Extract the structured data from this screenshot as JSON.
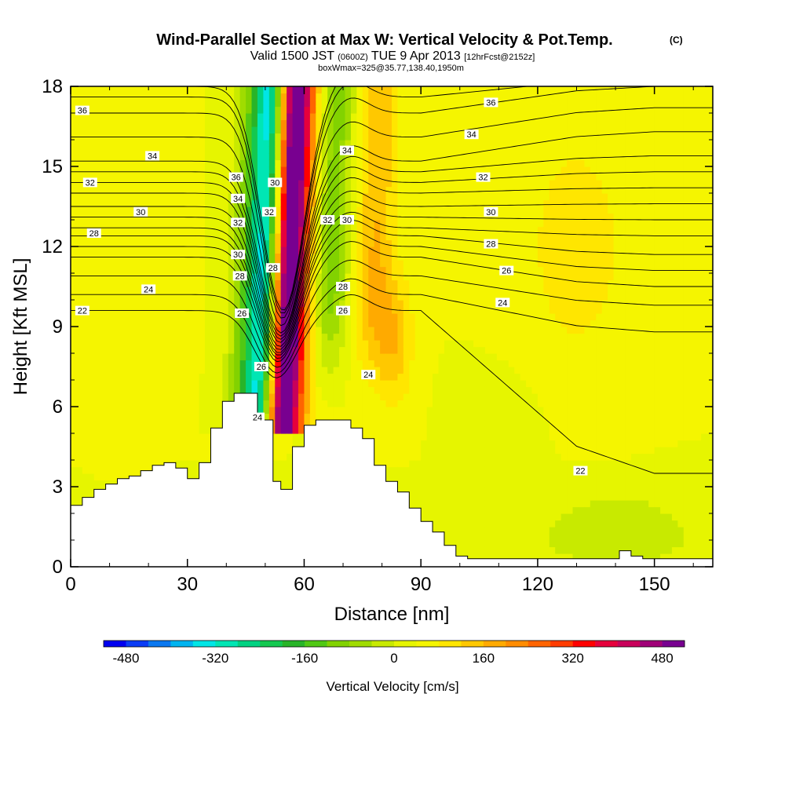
{
  "chart_data": {
    "type": "heatmap",
    "title": "Wind-Parallel Section at Max W: Vertical Velocity & Pot.Temp.",
    "title_badge": "(C)",
    "subtitle_main": "Valid 1500 JST",
    "subtitle_utc": "(0600Z)",
    "subtitle_date": "TUE 9 Apr 2013",
    "subtitle_fcst": "[12hrFcst@2152z]",
    "subtitle2": "boxWmax=325@35.77,138.40,1950m",
    "xlabel": "Distance [nm]",
    "ylabel": "Height [Kft MSL]",
    "xlim": [
      0,
      165
    ],
    "ylim": [
      0,
      18
    ],
    "x_ticks": [
      "0",
      "30",
      "60",
      "90",
      "120",
      "150"
    ],
    "y_ticks": [
      "0",
      "3",
      "6",
      "9",
      "12",
      "15",
      "18"
    ],
    "colorbar": {
      "label": "Vertical Velocity [cm/s]",
      "ticks": [
        "-480",
        "-320",
        "-160",
        "0",
        "160",
        "320",
        "480"
      ],
      "range": [
        -520,
        520
      ],
      "colors": [
        "#0000f0",
        "#0a3cf5",
        "#0a78f0",
        "#00b4f0",
        "#00e6e6",
        "#00e6b4",
        "#00d282",
        "#14c850",
        "#28b428",
        "#50c814",
        "#82d200",
        "#a0dc00",
        "#c8ea00",
        "#e6f500",
        "#f5f500",
        "#ffe600",
        "#ffc800",
        "#ffaa00",
        "#ff8c00",
        "#ff6400",
        "#ff3c00",
        "#ff0000",
        "#e6003c",
        "#c8005a",
        "#a00078",
        "#780090"
      ]
    },
    "velocity_field": {
      "x": [
        0,
        6,
        12,
        18,
        24,
        30,
        36,
        38,
        40,
        42,
        44,
        46,
        48,
        50,
        52,
        54,
        56,
        58,
        60,
        62,
        64,
        66,
        68,
        70,
        72,
        74,
        76,
        78,
        80,
        82,
        84,
        86,
        90,
        96,
        102,
        108,
        114,
        120,
        126,
        132,
        138,
        144,
        150,
        156,
        160,
        165
      ],
      "y": [
        0,
        1,
        2,
        3,
        4,
        5,
        6,
        7,
        8,
        9,
        10,
        11,
        12,
        13,
        14,
        15,
        16,
        17,
        18
      ],
      "center_x_at_y": [
        [
          5.5,
          52
        ],
        [
          8,
          53
        ],
        [
          12,
          54
        ],
        [
          16,
          55
        ],
        [
          18,
          55.5
        ]
      ],
      "features": [
        {
          "type": "background",
          "values_by_y": [
            20,
            20,
            30,
            30,
            40,
            40,
            40,
            40,
            40,
            40,
            40,
            40,
            40,
            40,
            40,
            40,
            40,
            40,
            40
          ]
        },
        {
          "type": "updraft_core",
          "dx": 2.5,
          "width": 3.5,
          "peak": 500
        },
        {
          "type": "updraft_edge",
          "dx": 6.5,
          "width": 3.5,
          "peak": 140
        },
        {
          "type": "downdraft_core",
          "dx": -4.5,
          "width": 3.5,
          "peak": -330
        },
        {
          "type": "downdraft_edge",
          "dx": -9,
          "width": 4,
          "peak": -120
        },
        {
          "type": "downdraft_lee",
          "dx": 13,
          "width": 5,
          "peak": -140
        },
        {
          "type": "updraft_lee",
          "dx": 24,
          "width": 5,
          "peak": 120
        },
        {
          "type": "blob",
          "x": 83,
          "y": 8.5,
          "rx": 5,
          "ry": 2.5,
          "peak": 110
        },
        {
          "type": "blob",
          "x": 110,
          "y": 5,
          "rx": 10,
          "ry": 2,
          "peak": -40
        },
        {
          "type": "blob",
          "x": 140,
          "y": 1.5,
          "rx": 20,
          "ry": 1.5,
          "peak": -50
        },
        {
          "type": "blob",
          "x": 130,
          "y": 12,
          "rx": 15,
          "ry": 5,
          "peak": 60
        },
        {
          "type": "blob",
          "x": 12,
          "y": 9,
          "rx": 10,
          "ry": 5,
          "peak": 30
        }
      ]
    },
    "terrain": {
      "x": [
        0,
        3,
        6,
        9,
        12,
        15,
        18,
        21,
        24,
        27,
        30,
        33,
        36,
        39,
        42,
        45,
        48,
        51,
        52,
        54,
        57,
        60,
        63,
        66,
        69,
        72,
        75,
        78,
        81,
        84,
        87,
        90,
        93,
        96,
        99,
        102,
        105,
        108,
        111,
        114,
        117,
        120,
        123,
        126,
        129,
        132,
        135,
        138,
        141,
        144,
        147,
        150,
        153,
        156,
        159,
        162,
        165
      ],
      "height": [
        2.3,
        2.6,
        2.9,
        3.1,
        3.3,
        3.4,
        3.6,
        3.8,
        3.9,
        3.7,
        3.3,
        3.9,
        5.2,
        6.2,
        6.5,
        6.5,
        5.5,
        5.5,
        3.2,
        2.9,
        4.5,
        5.3,
        5.5,
        5.5,
        5.5,
        5.2,
        4.8,
        3.8,
        3.2,
        2.8,
        2.2,
        1.7,
        1.3,
        0.8,
        0.4,
        0.3,
        0.3,
        0.3,
        0.3,
        0.3,
        0.3,
        0.3,
        0.3,
        0.3,
        0.3,
        0.3,
        0.3,
        0.3,
        0.6,
        0.4,
        0.3,
        0.3,
        0.3,
        0.3,
        0.3,
        0.3,
        0.3
      ]
    },
    "isentropes": {
      "levels": [
        22,
        23,
        24,
        25,
        26,
        27,
        28,
        29,
        30,
        31,
        32,
        33,
        34,
        35,
        36,
        37,
        38
      ],
      "far_left_height": [
        9.6,
        10.2,
        10.9,
        11.6,
        12.0,
        12.4,
        12.7,
        13.1,
        13.5,
        14.0,
        14.4,
        14.8,
        15.2,
        16.1,
        17.0,
        17.6,
        18.0
      ],
      "far_right_height": [
        3.5,
        8.8,
        9.8,
        10.5,
        11.1,
        11.7,
        12.4,
        13.0,
        13.6,
        14.2,
        14.8,
        15.4,
        16.3,
        17.2,
        18.0,
        18.3,
        18.6
      ],
      "labels": [
        {
          "text": "36",
          "x": 3,
          "y": 17.1
        },
        {
          "text": "34",
          "x": 21,
          "y": 15.4
        },
        {
          "text": "32",
          "x": 5,
          "y": 14.4
        },
        {
          "text": "30",
          "x": 18,
          "y": 13.3
        },
        {
          "text": "28",
          "x": 6,
          "y": 12.5
        },
        {
          "text": "24",
          "x": 20,
          "y": 10.4
        },
        {
          "text": "22",
          "x": 3,
          "y": 9.6
        },
        {
          "text": "36",
          "x": 42.5,
          "y": 14.6
        },
        {
          "text": "34",
          "x": 43,
          "y": 13.8
        },
        {
          "text": "32",
          "x": 43,
          "y": 12.9
        },
        {
          "text": "30",
          "x": 43,
          "y": 11.7
        },
        {
          "text": "28",
          "x": 43.5,
          "y": 10.9
        },
        {
          "text": "26",
          "x": 44,
          "y": 9.5
        },
        {
          "text": "30",
          "x": 52.5,
          "y": 14.4
        },
        {
          "text": "32",
          "x": 51,
          "y": 13.3
        },
        {
          "text": "28",
          "x": 52,
          "y": 11.2
        },
        {
          "text": "26",
          "x": 49,
          "y": 7.5
        },
        {
          "text": "24",
          "x": 48,
          "y": 5.6
        },
        {
          "text": "34",
          "x": 71,
          "y": 15.6
        },
        {
          "text": "32",
          "x": 66,
          "y": 13.0
        },
        {
          "text": "30",
          "x": 71,
          "y": 13.0
        },
        {
          "text": "28",
          "x": 70,
          "y": 10.5
        },
        {
          "text": "26",
          "x": 70,
          "y": 9.6
        },
        {
          "text": "24",
          "x": 76.5,
          "y": 7.2
        },
        {
          "text": "36",
          "x": 108,
          "y": 17.4
        },
        {
          "text": "34",
          "x": 103,
          "y": 16.2
        },
        {
          "text": "32",
          "x": 106,
          "y": 14.6
        },
        {
          "text": "30",
          "x": 108,
          "y": 13.3
        },
        {
          "text": "28",
          "x": 108,
          "y": 12.1
        },
        {
          "text": "26",
          "x": 112,
          "y": 11.1
        },
        {
          "text": "24",
          "x": 111,
          "y": 9.9
        },
        {
          "text": "22",
          "x": 131,
          "y": 3.6
        }
      ]
    }
  }
}
